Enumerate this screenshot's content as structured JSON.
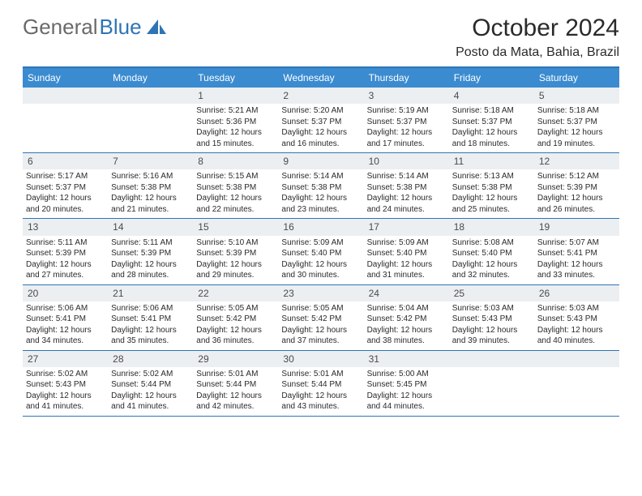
{
  "logo": {
    "text1": "General",
    "text2": "Blue"
  },
  "title": "October 2024",
  "location": "Posto da Mata, Bahia, Brazil",
  "colors": {
    "header_bg": "#3b8bd0",
    "border": "#2f74b5",
    "daynum_bg": "#eceff1",
    "text": "#2a2a2a",
    "logo_gray": "#6a6a6a",
    "logo_blue": "#2f74b5"
  },
  "day_names": [
    "Sunday",
    "Monday",
    "Tuesday",
    "Wednesday",
    "Thursday",
    "Friday",
    "Saturday"
  ],
  "weeks": [
    [
      null,
      null,
      {
        "n": "1",
        "sr": "Sunrise: 5:21 AM",
        "ss": "Sunset: 5:36 PM",
        "dl": "Daylight: 12 hours and 15 minutes."
      },
      {
        "n": "2",
        "sr": "Sunrise: 5:20 AM",
        "ss": "Sunset: 5:37 PM",
        "dl": "Daylight: 12 hours and 16 minutes."
      },
      {
        "n": "3",
        "sr": "Sunrise: 5:19 AM",
        "ss": "Sunset: 5:37 PM",
        "dl": "Daylight: 12 hours and 17 minutes."
      },
      {
        "n": "4",
        "sr": "Sunrise: 5:18 AM",
        "ss": "Sunset: 5:37 PM",
        "dl": "Daylight: 12 hours and 18 minutes."
      },
      {
        "n": "5",
        "sr": "Sunrise: 5:18 AM",
        "ss": "Sunset: 5:37 PM",
        "dl": "Daylight: 12 hours and 19 minutes."
      }
    ],
    [
      {
        "n": "6",
        "sr": "Sunrise: 5:17 AM",
        "ss": "Sunset: 5:37 PM",
        "dl": "Daylight: 12 hours and 20 minutes."
      },
      {
        "n": "7",
        "sr": "Sunrise: 5:16 AM",
        "ss": "Sunset: 5:38 PM",
        "dl": "Daylight: 12 hours and 21 minutes."
      },
      {
        "n": "8",
        "sr": "Sunrise: 5:15 AM",
        "ss": "Sunset: 5:38 PM",
        "dl": "Daylight: 12 hours and 22 minutes."
      },
      {
        "n": "9",
        "sr": "Sunrise: 5:14 AM",
        "ss": "Sunset: 5:38 PM",
        "dl": "Daylight: 12 hours and 23 minutes."
      },
      {
        "n": "10",
        "sr": "Sunrise: 5:14 AM",
        "ss": "Sunset: 5:38 PM",
        "dl": "Daylight: 12 hours and 24 minutes."
      },
      {
        "n": "11",
        "sr": "Sunrise: 5:13 AM",
        "ss": "Sunset: 5:38 PM",
        "dl": "Daylight: 12 hours and 25 minutes."
      },
      {
        "n": "12",
        "sr": "Sunrise: 5:12 AM",
        "ss": "Sunset: 5:39 PM",
        "dl": "Daylight: 12 hours and 26 minutes."
      }
    ],
    [
      {
        "n": "13",
        "sr": "Sunrise: 5:11 AM",
        "ss": "Sunset: 5:39 PM",
        "dl": "Daylight: 12 hours and 27 minutes."
      },
      {
        "n": "14",
        "sr": "Sunrise: 5:11 AM",
        "ss": "Sunset: 5:39 PM",
        "dl": "Daylight: 12 hours and 28 minutes."
      },
      {
        "n": "15",
        "sr": "Sunrise: 5:10 AM",
        "ss": "Sunset: 5:39 PM",
        "dl": "Daylight: 12 hours and 29 minutes."
      },
      {
        "n": "16",
        "sr": "Sunrise: 5:09 AM",
        "ss": "Sunset: 5:40 PM",
        "dl": "Daylight: 12 hours and 30 minutes."
      },
      {
        "n": "17",
        "sr": "Sunrise: 5:09 AM",
        "ss": "Sunset: 5:40 PM",
        "dl": "Daylight: 12 hours and 31 minutes."
      },
      {
        "n": "18",
        "sr": "Sunrise: 5:08 AM",
        "ss": "Sunset: 5:40 PM",
        "dl": "Daylight: 12 hours and 32 minutes."
      },
      {
        "n": "19",
        "sr": "Sunrise: 5:07 AM",
        "ss": "Sunset: 5:41 PM",
        "dl": "Daylight: 12 hours and 33 minutes."
      }
    ],
    [
      {
        "n": "20",
        "sr": "Sunrise: 5:06 AM",
        "ss": "Sunset: 5:41 PM",
        "dl": "Daylight: 12 hours and 34 minutes."
      },
      {
        "n": "21",
        "sr": "Sunrise: 5:06 AM",
        "ss": "Sunset: 5:41 PM",
        "dl": "Daylight: 12 hours and 35 minutes."
      },
      {
        "n": "22",
        "sr": "Sunrise: 5:05 AM",
        "ss": "Sunset: 5:42 PM",
        "dl": "Daylight: 12 hours and 36 minutes."
      },
      {
        "n": "23",
        "sr": "Sunrise: 5:05 AM",
        "ss": "Sunset: 5:42 PM",
        "dl": "Daylight: 12 hours and 37 minutes."
      },
      {
        "n": "24",
        "sr": "Sunrise: 5:04 AM",
        "ss": "Sunset: 5:42 PM",
        "dl": "Daylight: 12 hours and 38 minutes."
      },
      {
        "n": "25",
        "sr": "Sunrise: 5:03 AM",
        "ss": "Sunset: 5:43 PM",
        "dl": "Daylight: 12 hours and 39 minutes."
      },
      {
        "n": "26",
        "sr": "Sunrise: 5:03 AM",
        "ss": "Sunset: 5:43 PM",
        "dl": "Daylight: 12 hours and 40 minutes."
      }
    ],
    [
      {
        "n": "27",
        "sr": "Sunrise: 5:02 AM",
        "ss": "Sunset: 5:43 PM",
        "dl": "Daylight: 12 hours and 41 minutes."
      },
      {
        "n": "28",
        "sr": "Sunrise: 5:02 AM",
        "ss": "Sunset: 5:44 PM",
        "dl": "Daylight: 12 hours and 41 minutes."
      },
      {
        "n": "29",
        "sr": "Sunrise: 5:01 AM",
        "ss": "Sunset: 5:44 PM",
        "dl": "Daylight: 12 hours and 42 minutes."
      },
      {
        "n": "30",
        "sr": "Sunrise: 5:01 AM",
        "ss": "Sunset: 5:44 PM",
        "dl": "Daylight: 12 hours and 43 minutes."
      },
      {
        "n": "31",
        "sr": "Sunrise: 5:00 AM",
        "ss": "Sunset: 5:45 PM",
        "dl": "Daylight: 12 hours and 44 minutes."
      },
      null,
      null
    ]
  ]
}
